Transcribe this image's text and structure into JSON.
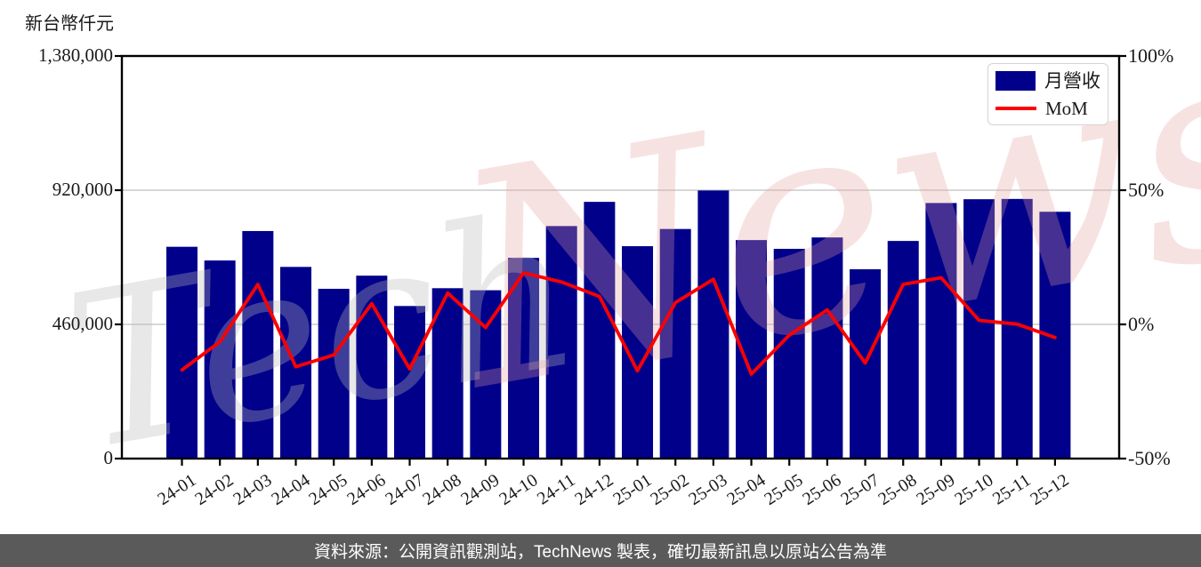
{
  "title": "新台幣仟元",
  "legend": {
    "bar_label": "月營收",
    "line_label": "MoM"
  },
  "watermark": {
    "text": "TechNews",
    "left_part": "Tech",
    "right_part": "News"
  },
  "footer": {
    "text": "資料來源：公開資訊觀測站，TechNews 製表，確切最新訊息以原站公告為準"
  },
  "colors": {
    "bar": "#00008B",
    "line": "#FF0000",
    "grid": "#CCCCCC",
    "axis": "#000000",
    "text": "#1A1A1A",
    "legend_border": "#D3D3D3",
    "footer_bg": "#5A5A5A",
    "footer_text": "#FFFFFF",
    "watermark_gray": "#BBBBBB",
    "watermark_pink": "#E8A0A0"
  },
  "chart_data": {
    "type": "bar",
    "title": "新台幣仟元",
    "categories": [
      "24-01",
      "24-02",
      "24-03",
      "24-04",
      "24-05",
      "24-06",
      "24-07",
      "24-08",
      "24-09",
      "24-10",
      "24-11",
      "24-12",
      "25-01",
      "25-02",
      "25-03",
      "25-04",
      "25-05",
      "25-06",
      "25-07",
      "25-08",
      "25-09",
      "25-10",
      "25-11",
      "25-12"
    ],
    "series": [
      {
        "name": "月營收",
        "type": "bar",
        "axis": "left",
        "values": [
          726000,
          679000,
          780000,
          657000,
          582000,
          627000,
          523000,
          584000,
          577000,
          688000,
          797000,
          880000,
          728000,
          787000,
          919000,
          749000,
          719000,
          758000,
          649000,
          746000,
          876000,
          889000,
          890000,
          846000
        ]
      },
      {
        "name": "MoM",
        "type": "line",
        "axis": "right",
        "values": [
          -17.0,
          -6.5,
          14.9,
          -15.8,
          -11.4,
          7.7,
          -16.6,
          11.7,
          -1.2,
          19.2,
          15.8,
          10.4,
          -17.3,
          8.1,
          16.8,
          -18.5,
          -4.0,
          5.4,
          -14.4,
          14.9,
          17.4,
          1.5,
          0.1,
          -4.9
        ]
      }
    ],
    "ylabel": "新台幣仟元",
    "ylim_left": [
      0,
      1380000
    ],
    "ytick_values_left": [
      0,
      460000,
      920000,
      1380000
    ],
    "ytick_labels_left": [
      "0",
      "460,000",
      "920,000",
      "1,380,000"
    ],
    "ylim_right": [
      -50,
      100
    ],
    "ytick_values_right": [
      -50,
      0,
      50,
      100
    ],
    "ytick_labels_right": [
      "-50%",
      "0%",
      "50%",
      "100%"
    ],
    "grid": "horizontal",
    "gridline_values_left": [
      460000,
      920000
    ],
    "legend_position": "top-right"
  }
}
